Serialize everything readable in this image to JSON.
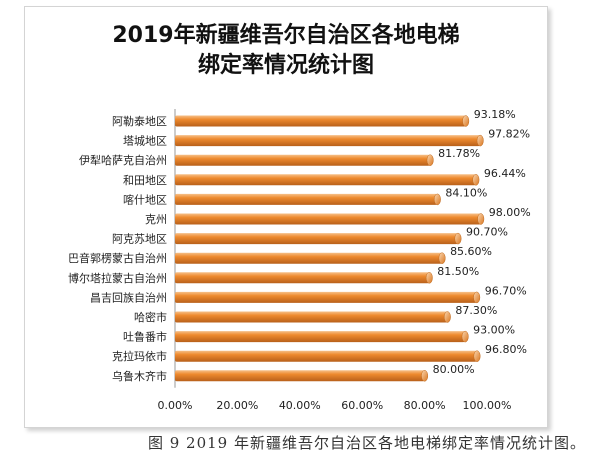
{
  "chart_data": {
    "type": "bar",
    "orientation": "horizontal",
    "title_lines": [
      "2019年新疆维吾尔自治区各地电梯",
      "绑定率情况统计图"
    ],
    "categories": [
      "阿勒泰地区",
      "塔城地区",
      "伊犁哈萨克自治州",
      "和田地区",
      "喀什地区",
      "克州",
      "阿克苏地区",
      "巴音郭楞蒙古自治州",
      "博尔塔拉蒙古自治州",
      "昌吉回族自治州",
      "哈密市",
      "吐鲁番市",
      "克拉玛依市",
      "乌鲁木齐市"
    ],
    "values": [
      93.18,
      97.82,
      81.78,
      96.44,
      84.1,
      98.0,
      90.7,
      85.6,
      81.5,
      96.7,
      87.3,
      93.0,
      96.8,
      80.0
    ],
    "data_labels": [
      "93.18%",
      "97.82%",
      "81.78%",
      "96.44%",
      "84.10%",
      "98.00%",
      "90.70%",
      "85.60%",
      "81.50%",
      "96.70%",
      "87.30%",
      "93.00%",
      "96.80%",
      "80.00%"
    ],
    "xlim": [
      0,
      100
    ],
    "x_ticks": [
      "0.00%",
      "20.00%",
      "40.00%",
      "60.00%",
      "80.00%",
      "100.00%"
    ],
    "bar_color": "#ee8a2e",
    "bar_style": "3d-cylinder",
    "grid": false,
    "legend": "none"
  },
  "caption": "图 9 2019 年新疆维吾尔自治区各地电梯绑定率情况统计图。"
}
